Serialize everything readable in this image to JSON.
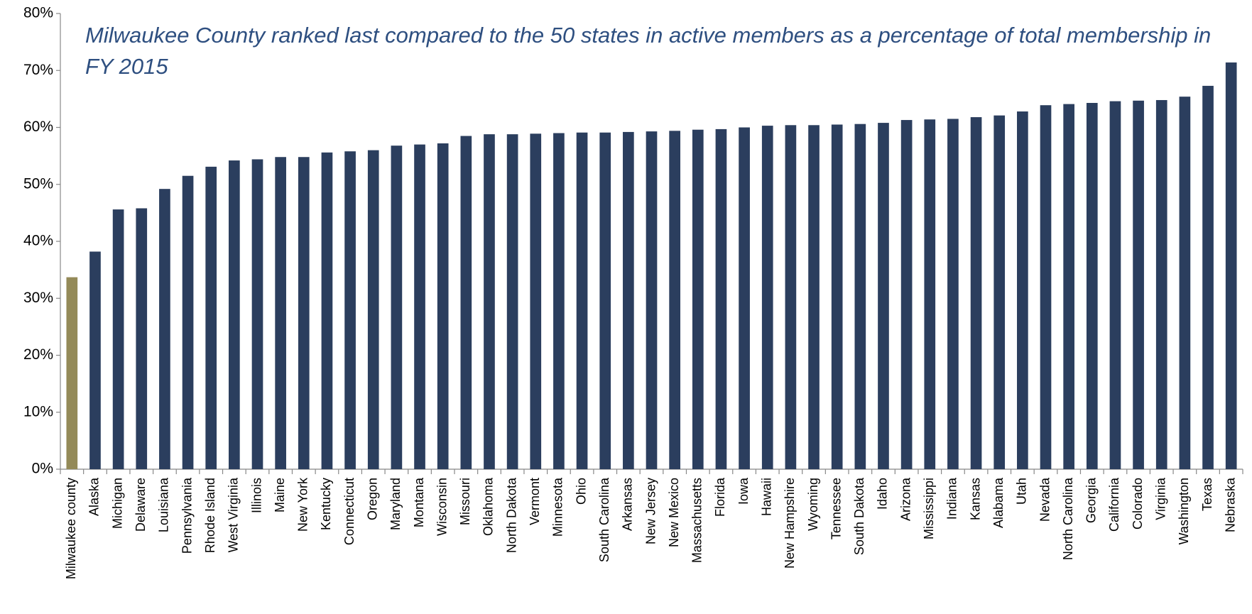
{
  "chart_data": {
    "type": "bar",
    "title": "Milwaukee County ranked last compared to the 50 states in active members as a percentage of total membership in FY 2015",
    "categories": [
      "Milwaukee county",
      "Alaska",
      "Michigan",
      "Delaware",
      "Louisiana",
      "Pennsylvania",
      "Rhode Island",
      "West Virginia",
      "Illinois",
      "Maine",
      "New York",
      "Kentucky",
      "Connecticut",
      "Oregon",
      "Maryland",
      "Montana",
      "Wisconsin",
      "Missouri",
      "Oklahoma",
      "North Dakota",
      "Vermont",
      "Minnesota",
      "Ohio",
      "South Carolina",
      "Arkansas",
      "New Jersey",
      "New Mexico",
      "Massachusetts",
      "Florida",
      "Iowa",
      "Hawaii",
      "New Hampshire",
      "Wyoming",
      "Tennessee",
      "South Dakota",
      "Idaho",
      "Arizona",
      "Mississippi",
      "Indiana",
      "Kansas",
      "Alabama",
      "Utah",
      "Nevada",
      "North Carolina",
      "Georgia",
      "California",
      "Colorado",
      "Virginia",
      "Washington",
      "Texas",
      "Nebraska"
    ],
    "values": [
      33.7,
      38.2,
      45.6,
      45.8,
      49.2,
      51.5,
      53.1,
      54.2,
      54.4,
      54.8,
      54.8,
      55.6,
      55.8,
      56.0,
      56.8,
      57.0,
      57.2,
      58.5,
      58.8,
      58.8,
      58.9,
      59.0,
      59.1,
      59.1,
      59.2,
      59.3,
      59.4,
      59.6,
      59.7,
      60.0,
      60.3,
      60.4,
      60.4,
      60.5,
      60.6,
      60.8,
      61.3,
      61.4,
      61.5,
      61.8,
      62.1,
      62.8,
      63.9,
      64.1,
      64.3,
      64.6,
      64.7,
      64.8,
      65.4,
      67.3,
      71.4
    ],
    "colors": [
      "#948a58",
      "#2b3e5e",
      "#2b3e5e",
      "#2b3e5e",
      "#2b3e5e",
      "#2b3e5e",
      "#2b3e5e",
      "#2b3e5e",
      "#2b3e5e",
      "#2b3e5e",
      "#2b3e5e",
      "#2b3e5e",
      "#2b3e5e",
      "#2b3e5e",
      "#2b3e5e",
      "#2b3e5e",
      "#2b3e5e",
      "#2b3e5e",
      "#2b3e5e",
      "#2b3e5e",
      "#2b3e5e",
      "#2b3e5e",
      "#2b3e5e",
      "#2b3e5e",
      "#2b3e5e",
      "#2b3e5e",
      "#2b3e5e",
      "#2b3e5e",
      "#2b3e5e",
      "#2b3e5e",
      "#2b3e5e",
      "#2b3e5e",
      "#2b3e5e",
      "#2b3e5e",
      "#2b3e5e",
      "#2b3e5e",
      "#2b3e5e",
      "#2b3e5e",
      "#2b3e5e",
      "#2b3e5e",
      "#2b3e5e",
      "#2b3e5e",
      "#2b3e5e",
      "#2b3e5e",
      "#2b3e5e",
      "#2b3e5e",
      "#2b3e5e",
      "#2b3e5e",
      "#2b3e5e",
      "#2b3e5e",
      "#2b3e5e"
    ],
    "ylim": [
      0,
      80
    ],
    "yticks": [
      {
        "value": 0,
        "label": "0%"
      },
      {
        "value": 10,
        "label": "10%"
      },
      {
        "value": 20,
        "label": "20%"
      },
      {
        "value": 30,
        "label": "30%"
      },
      {
        "value": 40,
        "label": "40%"
      },
      {
        "value": 50,
        "label": "50%"
      },
      {
        "value": 60,
        "label": "60%"
      },
      {
        "value": 70,
        "label": "70%"
      },
      {
        "value": 80,
        "label": "80%"
      }
    ],
    "grid": false
  }
}
